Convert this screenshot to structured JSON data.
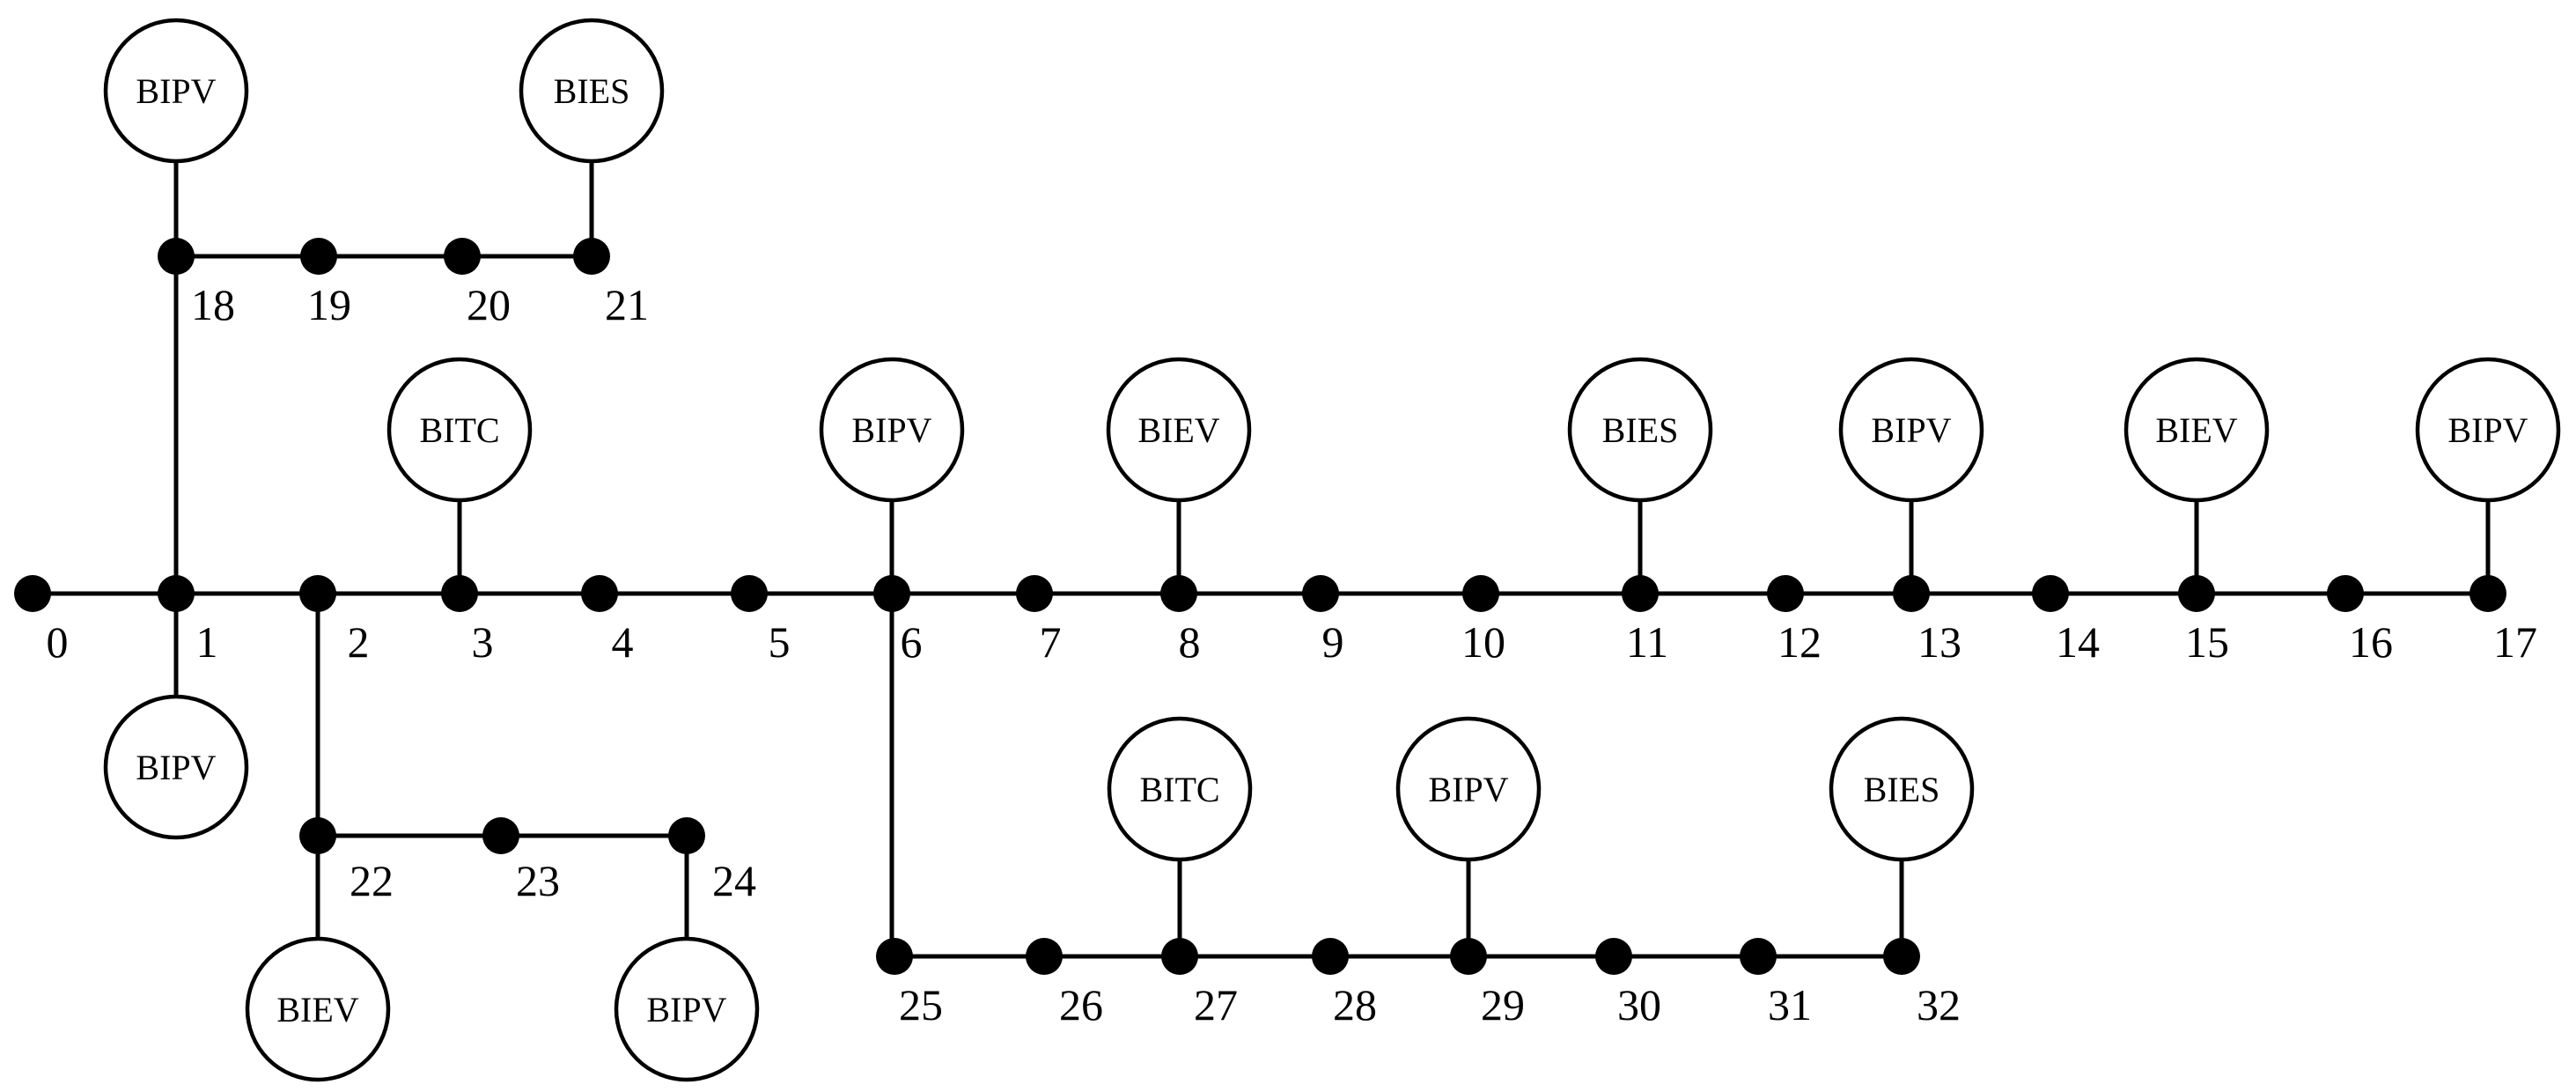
{
  "diagram": {
    "nodes": [
      "0",
      "1",
      "2",
      "3",
      "4",
      "5",
      "6",
      "7",
      "8",
      "9",
      "10",
      "11",
      "12",
      "13",
      "14",
      "15",
      "16",
      "17",
      "18",
      "19",
      "20",
      "21",
      "22",
      "23",
      "24",
      "25",
      "26",
      "27",
      "28",
      "29",
      "30",
      "31",
      "32"
    ],
    "lines": [
      [
        "0",
        "1"
      ],
      [
        "1",
        "2"
      ],
      [
        "2",
        "3"
      ],
      [
        "3",
        "4"
      ],
      [
        "4",
        "5"
      ],
      [
        "5",
        "6"
      ],
      [
        "6",
        "7"
      ],
      [
        "7",
        "8"
      ],
      [
        "8",
        "9"
      ],
      [
        "9",
        "10"
      ],
      [
        "10",
        "11"
      ],
      [
        "11",
        "12"
      ],
      [
        "12",
        "13"
      ],
      [
        "13",
        "14"
      ],
      [
        "14",
        "15"
      ],
      [
        "15",
        "16"
      ],
      [
        "16",
        "17"
      ],
      [
        "1",
        "18"
      ],
      [
        "18",
        "19"
      ],
      [
        "19",
        "20"
      ],
      [
        "20",
        "21"
      ],
      [
        "2",
        "22"
      ],
      [
        "22",
        "23"
      ],
      [
        "23",
        "24"
      ],
      [
        "6",
        "25"
      ],
      [
        "25",
        "26"
      ],
      [
        "26",
        "27"
      ],
      [
        "27",
        "28"
      ],
      [
        "28",
        "29"
      ],
      [
        "29",
        "30"
      ],
      [
        "30",
        "31"
      ],
      [
        "31",
        "32"
      ]
    ],
    "devices": [
      {
        "label": "BIPV",
        "bus": "18"
      },
      {
        "label": "BIES",
        "bus": "21"
      },
      {
        "label": "BITC",
        "bus": "3"
      },
      {
        "label": "BIPV",
        "bus": "6"
      },
      {
        "label": "BIEV",
        "bus": "8"
      },
      {
        "label": "BIES",
        "bus": "11"
      },
      {
        "label": "BIPV",
        "bus": "13"
      },
      {
        "label": "BIEV",
        "bus": "15"
      },
      {
        "label": "BIPV",
        "bus": "17"
      },
      {
        "label": "BIPV",
        "bus": "1"
      },
      {
        "label": "BIEV",
        "bus": "22"
      },
      {
        "label": "BIPV",
        "bus": "24"
      },
      {
        "label": "BITC",
        "bus": "27"
      },
      {
        "label": "BIPV",
        "bus": "29"
      },
      {
        "label": "BIES",
        "bus": "32"
      }
    ]
  }
}
